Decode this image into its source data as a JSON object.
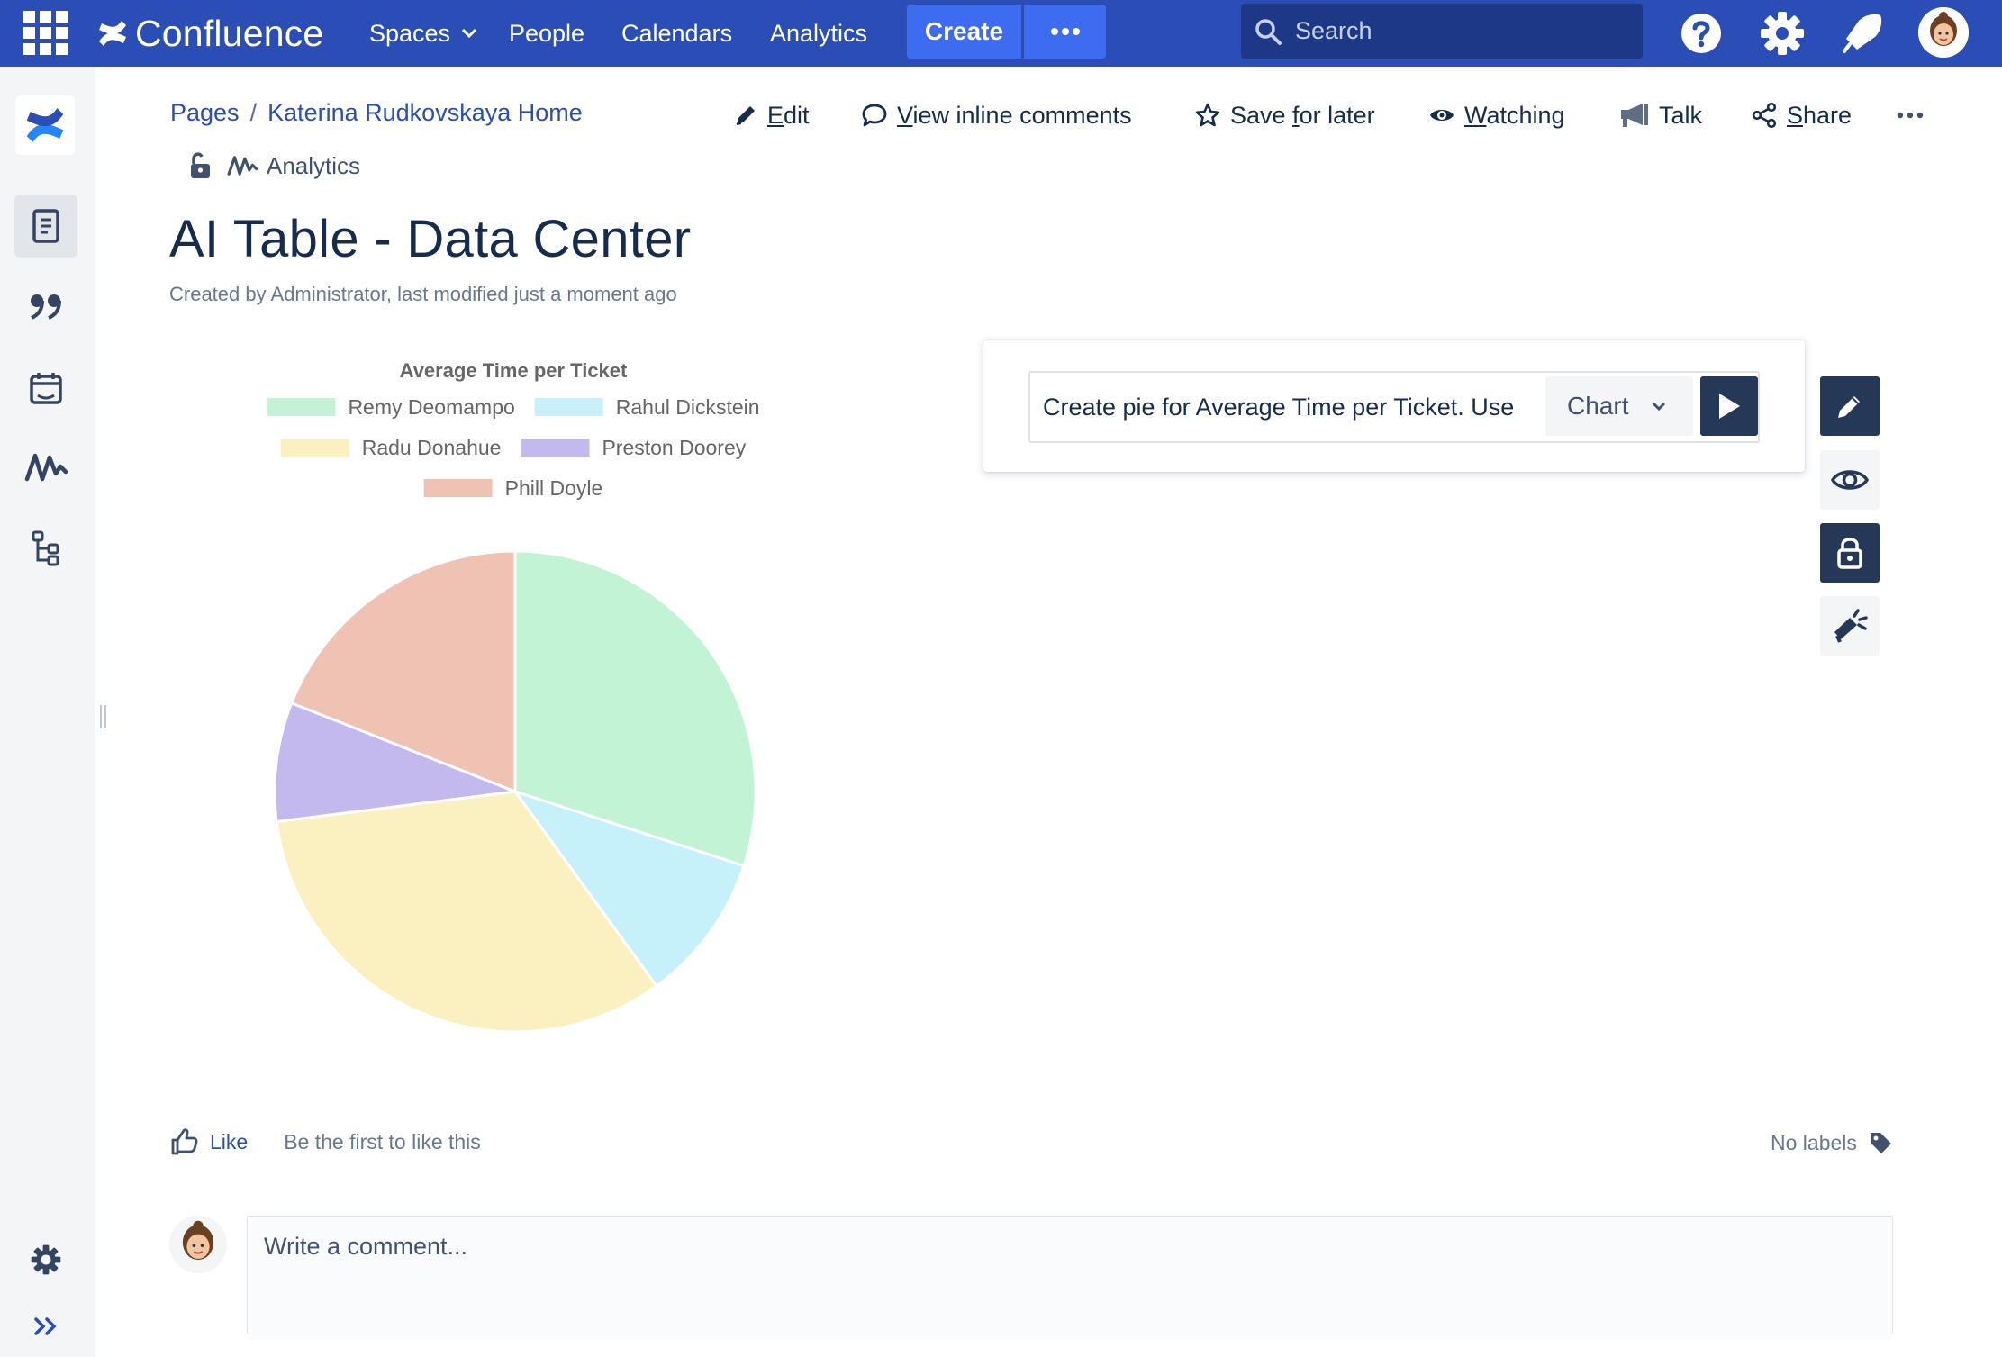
{
  "topbar": {
    "brand": "Confluence",
    "nav": {
      "spaces": "Spaces",
      "people": "People",
      "calendars": "Calendars",
      "analytics": "Analytics"
    },
    "create_label": "Create",
    "more_label": "•••",
    "search_placeholder": "Search",
    "icons": [
      "app-switcher-icon",
      "confluence-logo-icon",
      "chevron-down-icon",
      "search-icon",
      "help-icon",
      "gear-icon",
      "notifications-icon",
      "avatar"
    ]
  },
  "sidebar": {
    "icons": [
      "confluence-logo-icon",
      "pages-icon",
      "blog-quote-icon",
      "calendar-icon",
      "analytics-icon",
      "page-tree-icon",
      "gear-icon",
      "expand-icon"
    ]
  },
  "breadcrumb": {
    "root": "Pages",
    "separator": "/",
    "parent": "Katerina Rudkovskaya Home"
  },
  "actions": {
    "edit": {
      "first": "E",
      "rest": "dit"
    },
    "comments": {
      "first": "V",
      "rest": "iew inline comments"
    },
    "save": {
      "before": "Save ",
      "first": "f",
      "rest": "or later"
    },
    "watching": {
      "first": "W",
      "rest": "atching"
    },
    "talk": "Talk",
    "share": {
      "first": "S",
      "rest": "hare"
    },
    "more": "•••"
  },
  "meta": {
    "analytics_label": "Analytics"
  },
  "page": {
    "title": "AI Table - Data Center",
    "byline": "Created by Administrator, last modified just a moment ago"
  },
  "chart_data": {
    "type": "pie",
    "title": "Average Time per Ticket",
    "categories": [
      "Remy Deomampo",
      "Rahul Dickstein",
      "Radu Donahue",
      "Preston Doorey",
      "Phill Doyle"
    ],
    "values": [
      30,
      10,
      33,
      8,
      19
    ],
    "colors": [
      "#c3f3d5",
      "#c6f1fa",
      "#faf0c0",
      "#c3b9ef",
      "#efc2b3"
    ],
    "legend": "top"
  },
  "ai_prompt": {
    "text": "Create pie for Average Time per Ticket. Use",
    "mode": "Chart"
  },
  "tools": [
    "edit-icon",
    "eye-icon",
    "lock-icon",
    "megaphone-icon"
  ],
  "footer": {
    "like": "Like",
    "like_hint": "Be the first to like this",
    "labels": "No labels",
    "comment_placeholder": "Write a comment..."
  }
}
